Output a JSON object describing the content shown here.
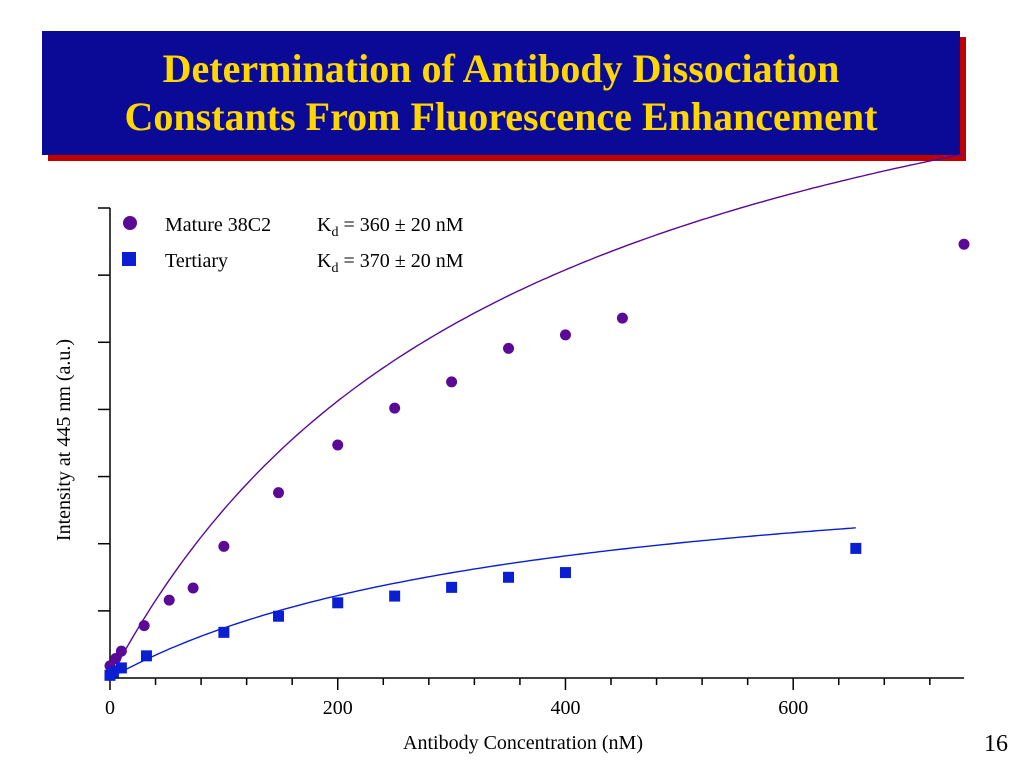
{
  "slide": {
    "title_line1": "Determination of Antibody Dissociation",
    "title_line2": "Constants From Fluorescence Enhancement",
    "page_number": "16",
    "title_bg": "#0a0a96",
    "title_color": "#ffd700",
    "title_shadow": "#c00000"
  },
  "chart_data": {
    "type": "scatter",
    "title": "",
    "xlabel": "Antibody Concentration (nM)",
    "ylabel": "Intensity at 445 nm (a.u.)",
    "xlim": [
      0,
      750
    ],
    "ylim": [
      0,
      7
    ],
    "xticks": [
      0,
      200,
      400,
      600
    ],
    "xtick_labels": [
      "0",
      "200",
      "400",
      "600"
    ],
    "x_minor_step": 40,
    "yticks": [
      1,
      2,
      3,
      4,
      5,
      6,
      7
    ],
    "ytick_labels": [],
    "legend_position": "top-left",
    "series": [
      {
        "name": "Mature 38C2",
        "kd_prefix": "K",
        "kd_sub": "d",
        "kd_value": " = 360 ± 20 nM",
        "marker": "circle",
        "color": "#5a0a96",
        "fit_color": "#5a0a96",
        "fit": {
          "model": "hyperbola",
          "max": 11.55,
          "kd": 360
        },
        "x": [
          0,
          5,
          10,
          30,
          52,
          73,
          100,
          148,
          200,
          250,
          300,
          350,
          400,
          450,
          750
        ],
        "y": [
          0.18,
          0.29,
          0.4,
          0.78,
          1.16,
          1.34,
          1.96,
          2.76,
          3.47,
          4.02,
          4.41,
          4.91,
          5.11,
          5.36,
          6.46
        ]
      },
      {
        "name": "Tertiary",
        "kd_prefix": "K",
        "kd_sub": "d",
        "kd_value": " = 370 ± 20 nM",
        "marker": "square",
        "color": "#0a1ed2",
        "fit_color": "#0a1ed2",
        "fit": {
          "model": "hyperbola",
          "max": 3.5,
          "kd": 370
        },
        "x": [
          0,
          3,
          10,
          32,
          100,
          148,
          200,
          250,
          300,
          350,
          400,
          655
        ],
        "y": [
          0.04,
          0.09,
          0.15,
          0.33,
          0.68,
          0.92,
          1.12,
          1.22,
          1.35,
          1.5,
          1.57,
          1.93
        ]
      }
    ]
  }
}
